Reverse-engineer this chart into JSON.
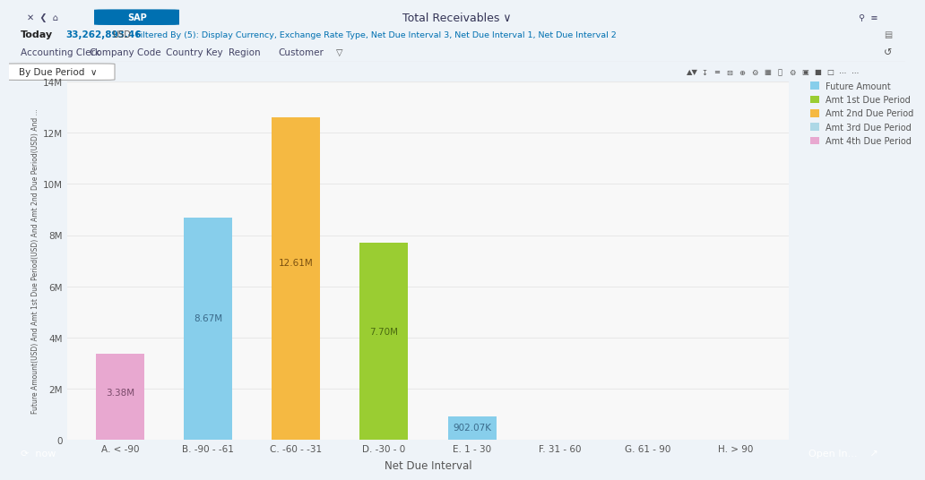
{
  "categories": [
    "A. < -90",
    "B. -90 - -61",
    "C. -60 - -31",
    "D. -30 - 0",
    "E. 1 - 30",
    "F. 31 - 60",
    "G. 61 - 90",
    "H. > 90"
  ],
  "values": [
    3380000,
    8670000,
    12610000,
    7700000,
    902070,
    0,
    0,
    0
  ],
  "labels": [
    "3.38M",
    "8.67M",
    "12.61M",
    "7.70M",
    "902.07K",
    "",
    "",
    ""
  ],
  "bar_colors": [
    "#e8a8d0",
    "#87CEEB",
    "#F5B942",
    "#9ACD32",
    "#87CEEB",
    null,
    null,
    null
  ],
  "legend_colors": [
    "#87CEEB",
    "#9ACD32",
    "#F5B942",
    "#ADD8E6",
    "#e8a8d0"
  ],
  "legend_labels": [
    "Future Amount",
    "Amt 1st Due Period",
    "Amt 2nd Due Period",
    "Amt 3rd Due Period",
    "Amt 4th Due Period"
  ],
  "xlabel": "Net Due Interval",
  "ylabel": "Future Amount(USD) And Amt 1st Due Period(USD) And Amt 2nd Due Period(USD) And ...",
  "ylim": [
    0,
    14000000
  ],
  "yticks": [
    0,
    2000000,
    4000000,
    6000000,
    8000000,
    10000000,
    12000000,
    14000000
  ],
  "ytick_labels": [
    "0",
    "2M",
    "4M",
    "6M",
    "8M",
    "10M",
    "12M",
    "14M"
  ],
  "title": "Total Receivables ∨",
  "today_label": "Today",
  "amount": "33,262,893.46",
  "currency": "USD",
  "filter_text": "Filtered By (5): Display Currency, Exchange Rate Type, Net Due Interval 3, Net Due Interval 1, Net Due Interval 2",
  "tabs": [
    "Accounting Clerk",
    "Company Code",
    "Country Key",
    "Region",
    "Customer"
  ],
  "header_bg": "#c8d8e8",
  "subheader_bg": "#eef3f8",
  "chart_bg": "#f8f8f8",
  "tab_bg": "#eef3f8",
  "toolbar_bg": "#f8f8f8",
  "footer_bg": "#4a5a6a",
  "grid_color": "#e8e8e8",
  "bar_width": 0.55,
  "label_text_color": "#555555"
}
